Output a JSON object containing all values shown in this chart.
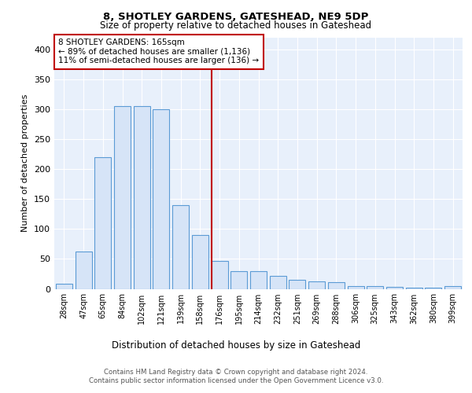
{
  "title1": "8, SHOTLEY GARDENS, GATESHEAD, NE9 5DP",
  "title2": "Size of property relative to detached houses in Gateshead",
  "xlabel": "Distribution of detached houses by size in Gateshead",
  "ylabel": "Number of detached properties",
  "categories": [
    "28sqm",
    "47sqm",
    "65sqm",
    "84sqm",
    "102sqm",
    "121sqm",
    "139sqm",
    "158sqm",
    "176sqm",
    "195sqm",
    "214sqm",
    "232sqm",
    "251sqm",
    "269sqm",
    "288sqm",
    "306sqm",
    "325sqm",
    "343sqm",
    "362sqm",
    "380sqm",
    "399sqm"
  ],
  "values": [
    8,
    63,
    220,
    305,
    305,
    300,
    140,
    90,
    47,
    30,
    30,
    22,
    15,
    13,
    11,
    5,
    5,
    3,
    2,
    2,
    5
  ],
  "bar_color": "#d6e4f7",
  "bar_edge_color": "#5b9bd5",
  "vline_index": 8,
  "vline_color": "#c00000",
  "annotation_title": "8 SHOTLEY GARDENS: 165sqm",
  "annotation_line1": "← 89% of detached houses are smaller (1,136)",
  "annotation_line2": "11% of semi-detached houses are larger (136) →",
  "annotation_box_color": "#c00000",
  "ylim": [
    0,
    420
  ],
  "yticks": [
    0,
    50,
    100,
    150,
    200,
    250,
    300,
    350,
    400
  ],
  "footer1": "Contains HM Land Registry data © Crown copyright and database right 2024.",
  "footer2": "Contains public sector information licensed under the Open Government Licence v3.0.",
  "plot_bg_color": "#e8f0fb"
}
